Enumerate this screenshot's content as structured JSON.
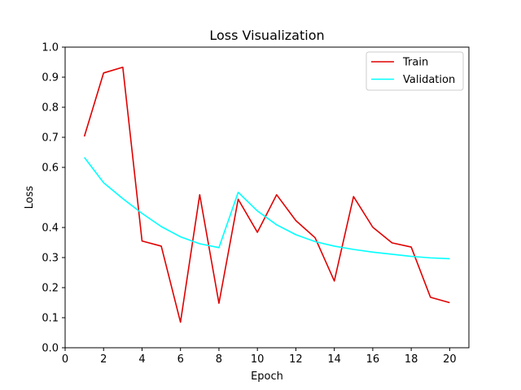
{
  "chart_data": {
    "type": "line",
    "title": "Loss Visualization",
    "xlabel": "Epoch",
    "ylabel": "Loss",
    "xlim": [
      0,
      21
    ],
    "ylim": [
      0.0,
      1.0
    ],
    "x_ticks": [
      0,
      2,
      4,
      6,
      8,
      10,
      12,
      14,
      16,
      18,
      20
    ],
    "x_tick_labels": [
      "0",
      "2",
      "4",
      "6",
      "8",
      "10",
      "12",
      "14",
      "16",
      "18",
      "20"
    ],
    "y_ticks": [
      0.0,
      0.1,
      0.2,
      0.3,
      0.4,
      0.6,
      0.7,
      0.8,
      0.9,
      1.0
    ],
    "y_tick_labels": [
      "0.0",
      "0.1",
      "0.2",
      "0.3",
      "0.4",
      "0.6",
      "0.7",
      "0.8",
      "0.9",
      "1.0"
    ],
    "grid": false,
    "legend_position": "top-right",
    "x": [
      1,
      2,
      3,
      4,
      5,
      6,
      7,
      8,
      9,
      10,
      11,
      12,
      13,
      14,
      15,
      16,
      17,
      18,
      19,
      20
    ],
    "series": [
      {
        "name": "Train",
        "color": "#e00000",
        "values": [
          0.703,
          0.914,
          0.933,
          0.355,
          0.338,
          0.085,
          0.509,
          0.148,
          0.494,
          0.384,
          0.509,
          0.423,
          0.366,
          0.222,
          0.503,
          0.401,
          0.349,
          0.335,
          0.168,
          0.15
        ]
      },
      {
        "name": "Validation",
        "color": "#00ffff",
        "values": [
          0.633,
          0.549,
          0.496,
          0.447,
          0.403,
          0.369,
          0.346,
          0.333,
          0.517,
          0.455,
          0.409,
          0.376,
          0.353,
          0.338,
          0.327,
          0.318,
          0.311,
          0.304,
          0.299,
          0.296
        ]
      }
    ]
  }
}
